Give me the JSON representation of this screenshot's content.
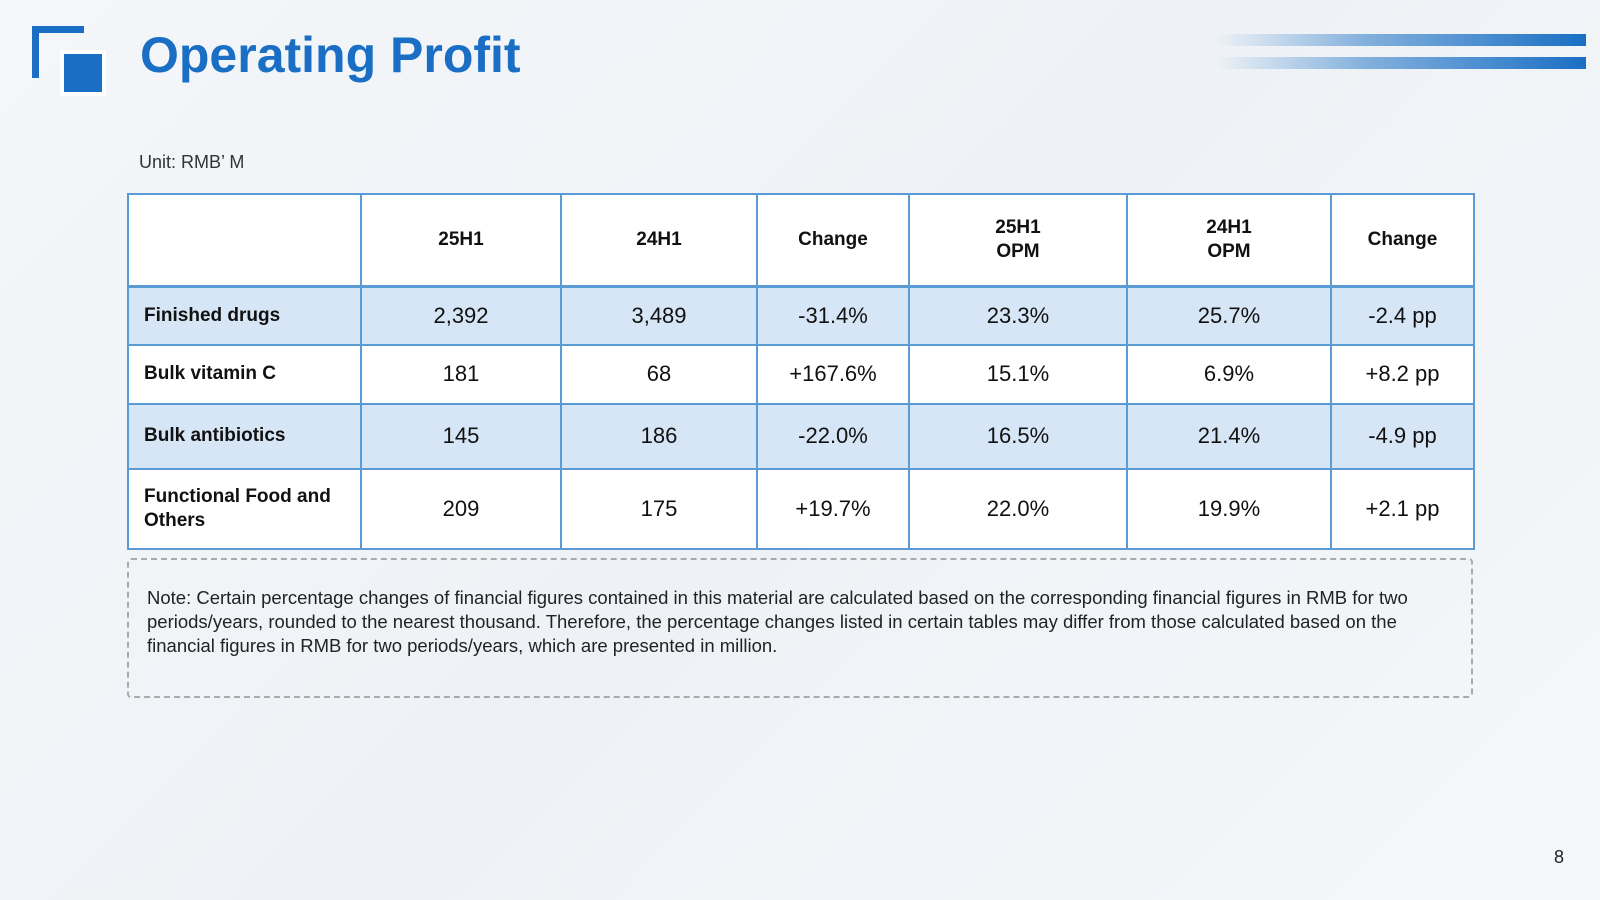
{
  "header": {
    "title": "Operating Profit"
  },
  "unit": "Unit: RMB’ M",
  "table": {
    "columns": [
      [
        "25H1"
      ],
      [
        "24H1"
      ],
      [
        "Change"
      ],
      [
        "25H1",
        "OPM"
      ],
      [
        "24H1",
        "OPM"
      ],
      [
        "Change"
      ]
    ],
    "rows": [
      [
        "Finished drugs",
        "2,392",
        "3,489",
        "-31.4%",
        "23.3%",
        "25.7%",
        "-2.4 pp"
      ],
      [
        "Bulk vitamin C",
        "181",
        "68",
        "+167.6%",
        "15.1%",
        "6.9%",
        "+8.2 pp"
      ],
      [
        "Bulk antibiotics",
        "145",
        "186",
        "-22.0%",
        "16.5%",
        "21.4%",
        "-4.9 pp"
      ],
      [
        "Functional Food and Others",
        "209",
        "175",
        "+19.7%",
        "22.0%",
        "19.9%",
        "+2.1 pp"
      ]
    ]
  },
  "note": "Note: Certain percentage changes of financial figures contained in this material are calculated based on the corresponding financial figures in RMB for two periods/years, rounded to the nearest thousand. Therefore, the percentage changes listed in certain tables may differ from those calculated based on the financial figures in RMB for two periods/years, which are presented in million.",
  "page_number": "8"
}
